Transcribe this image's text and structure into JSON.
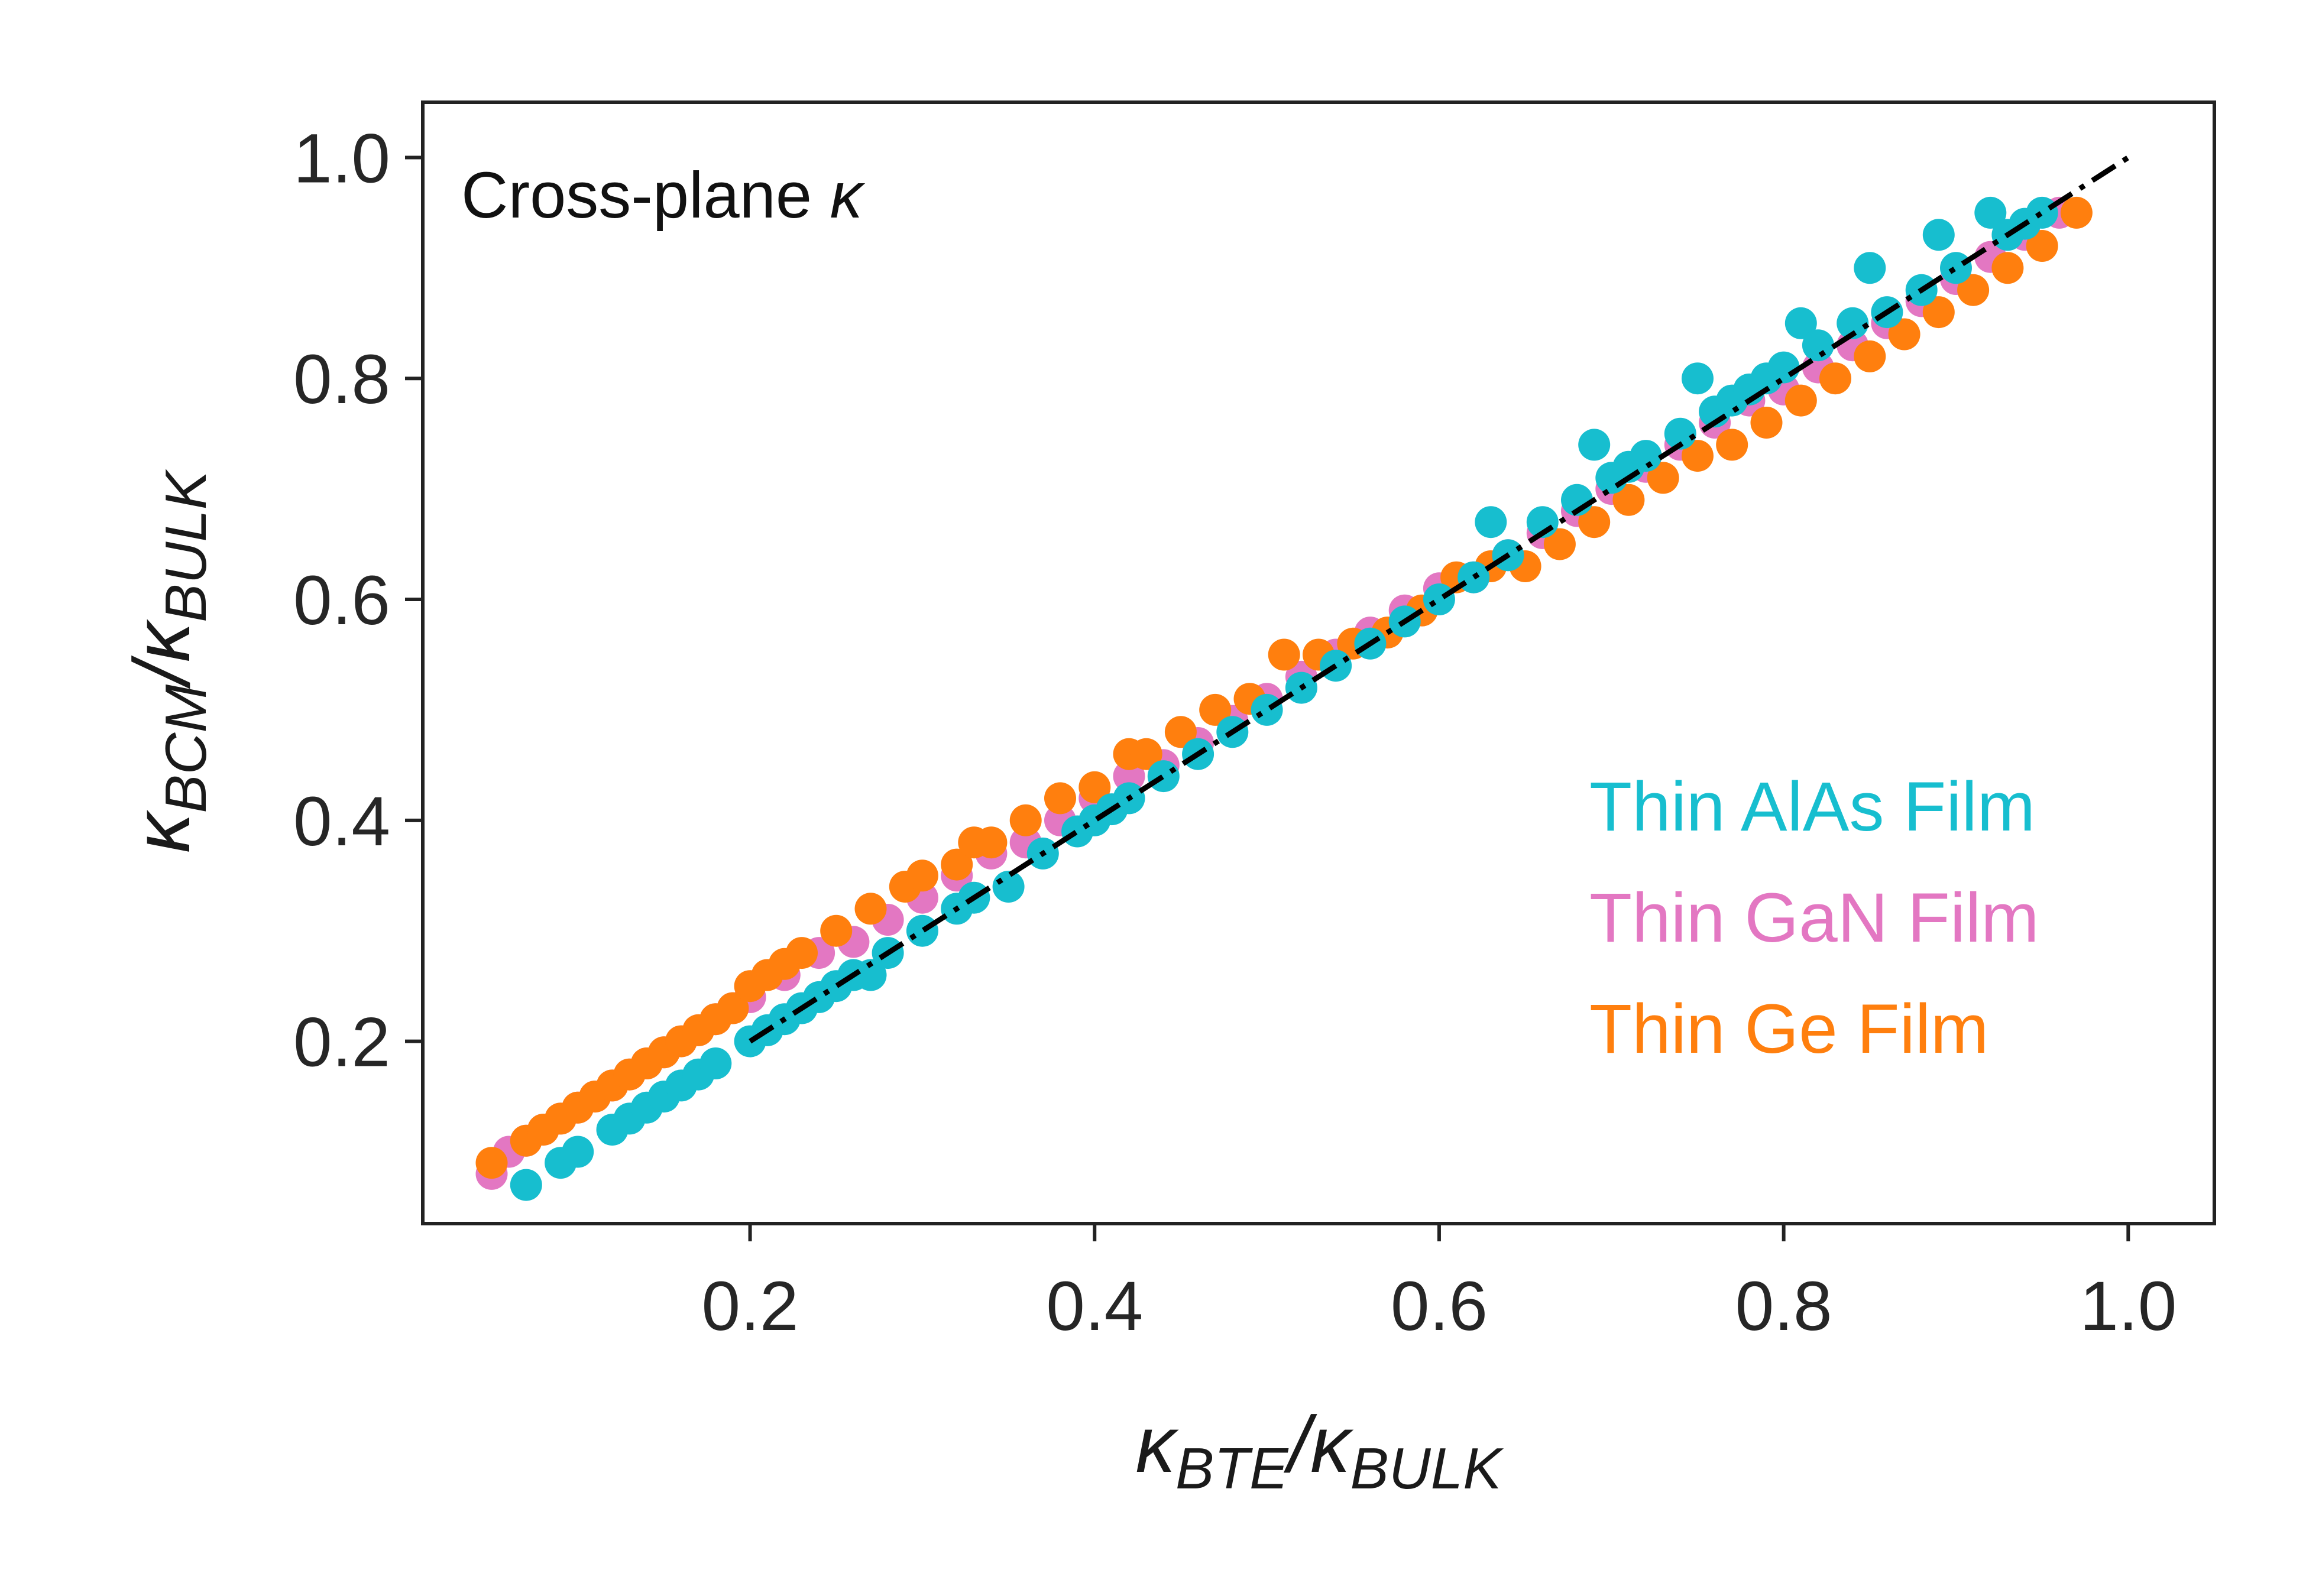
{
  "chart_data": {
    "type": "scatter",
    "annotation": {
      "prefix": "Cross-plane ",
      "symbol": "κ"
    },
    "xlabel": {
      "main": "κ",
      "sub": "BTE",
      "sep": "/κ",
      "sub2": "BULK"
    },
    "ylabel": {
      "main": "κ",
      "sub": "BCM",
      "sep": "/κ",
      "sub2": "BULK"
    },
    "xlim": [
      0.01,
      1.05
    ],
    "ylim": [
      0.035,
      1.05
    ],
    "xticks": [
      0.2,
      0.4,
      0.6,
      0.8,
      1.0
    ],
    "xtick_labels": [
      "0.2",
      "0.4",
      "0.6",
      "0.8",
      "1.0"
    ],
    "yticks": [
      0.2,
      0.4,
      0.6,
      0.8,
      1.0
    ],
    "ytick_labels": [
      "0.2",
      "0.4",
      "0.6",
      "0.8",
      "1.0"
    ],
    "grid": false,
    "legend_position": "lower-right",
    "reference_line": {
      "style": "dash-dot",
      "color": "#000000",
      "x": [
        0.2,
        1.0
      ],
      "y": [
        0.2,
        1.0
      ]
    },
    "series": [
      {
        "name": "Thin GaN Film",
        "color": "#e377c2",
        "x": [
          0.05,
          0.06,
          0.07,
          0.08,
          0.09,
          0.1,
          0.11,
          0.12,
          0.13,
          0.14,
          0.15,
          0.16,
          0.17,
          0.18,
          0.19,
          0.2,
          0.22,
          0.24,
          0.26,
          0.28,
          0.3,
          0.32,
          0.34,
          0.36,
          0.38,
          0.4,
          0.42,
          0.44,
          0.46,
          0.48,
          0.5,
          0.52,
          0.54,
          0.56,
          0.58,
          0.6,
          0.62,
          0.64,
          0.66,
          0.68,
          0.7,
          0.72,
          0.74,
          0.76,
          0.78,
          0.8,
          0.82,
          0.84,
          0.86,
          0.88,
          0.9,
          0.92,
          0.94,
          0.96
        ],
        "y": [
          0.08,
          0.1,
          0.11,
          0.12,
          0.13,
          0.14,
          0.15,
          0.16,
          0.17,
          0.18,
          0.19,
          0.2,
          0.21,
          0.22,
          0.23,
          0.24,
          0.26,
          0.28,
          0.29,
          0.31,
          0.33,
          0.35,
          0.37,
          0.38,
          0.4,
          0.42,
          0.44,
          0.45,
          0.47,
          0.49,
          0.51,
          0.53,
          0.55,
          0.57,
          0.59,
          0.61,
          0.62,
          0.64,
          0.66,
          0.68,
          0.7,
          0.72,
          0.74,
          0.76,
          0.78,
          0.79,
          0.81,
          0.83,
          0.85,
          0.87,
          0.89,
          0.91,
          0.93,
          0.95
        ]
      },
      {
        "name": "Thin Ge Film",
        "color": "#ff7f0e",
        "x": [
          0.05,
          0.07,
          0.08,
          0.09,
          0.1,
          0.11,
          0.12,
          0.13,
          0.14,
          0.15,
          0.16,
          0.17,
          0.18,
          0.19,
          0.2,
          0.21,
          0.22,
          0.23,
          0.25,
          0.27,
          0.29,
          0.3,
          0.32,
          0.33,
          0.34,
          0.36,
          0.38,
          0.4,
          0.42,
          0.43,
          0.45,
          0.47,
          0.49,
          0.51,
          0.53,
          0.55,
          0.57,
          0.59,
          0.61,
          0.63,
          0.65,
          0.67,
          0.69,
          0.71,
          0.73,
          0.75,
          0.77,
          0.79,
          0.81,
          0.83,
          0.85,
          0.87,
          0.89,
          0.91,
          0.93,
          0.95,
          0.97
        ],
        "y": [
          0.09,
          0.11,
          0.12,
          0.13,
          0.14,
          0.15,
          0.16,
          0.17,
          0.18,
          0.19,
          0.2,
          0.21,
          0.22,
          0.23,
          0.25,
          0.26,
          0.27,
          0.28,
          0.3,
          0.32,
          0.34,
          0.35,
          0.36,
          0.38,
          0.38,
          0.4,
          0.42,
          0.43,
          0.46,
          0.46,
          0.48,
          0.5,
          0.51,
          0.55,
          0.55,
          0.56,
          0.57,
          0.59,
          0.62,
          0.63,
          0.63,
          0.65,
          0.67,
          0.69,
          0.71,
          0.73,
          0.74,
          0.76,
          0.78,
          0.8,
          0.82,
          0.84,
          0.86,
          0.88,
          0.9,
          0.92,
          0.95
        ]
      },
      {
        "name": "Thin AlAs Film",
        "color": "#17becf",
        "x": [
          0.07,
          0.09,
          0.1,
          0.12,
          0.13,
          0.14,
          0.15,
          0.16,
          0.17,
          0.18,
          0.2,
          0.21,
          0.22,
          0.23,
          0.24,
          0.25,
          0.26,
          0.27,
          0.28,
          0.3,
          0.32,
          0.33,
          0.35,
          0.37,
          0.39,
          0.4,
          0.41,
          0.42,
          0.44,
          0.46,
          0.48,
          0.5,
          0.52,
          0.54,
          0.56,
          0.58,
          0.6,
          0.62,
          0.63,
          0.64,
          0.66,
          0.68,
          0.69,
          0.7,
          0.71,
          0.72,
          0.74,
          0.75,
          0.76,
          0.77,
          0.78,
          0.79,
          0.8,
          0.81,
          0.82,
          0.84,
          0.85,
          0.86,
          0.88,
          0.89,
          0.9,
          0.92,
          0.93,
          0.94,
          0.95
        ],
        "y": [
          0.07,
          0.09,
          0.1,
          0.12,
          0.13,
          0.14,
          0.15,
          0.16,
          0.17,
          0.18,
          0.2,
          0.21,
          0.22,
          0.23,
          0.24,
          0.25,
          0.26,
          0.26,
          0.28,
          0.3,
          0.32,
          0.33,
          0.34,
          0.37,
          0.39,
          0.4,
          0.41,
          0.42,
          0.44,
          0.46,
          0.48,
          0.5,
          0.52,
          0.54,
          0.56,
          0.58,
          0.6,
          0.62,
          0.67,
          0.64,
          0.67,
          0.69,
          0.74,
          0.71,
          0.72,
          0.73,
          0.75,
          0.8,
          0.77,
          0.78,
          0.79,
          0.8,
          0.81,
          0.85,
          0.83,
          0.85,
          0.9,
          0.86,
          0.88,
          0.93,
          0.9,
          0.95,
          0.93,
          0.94,
          0.95
        ]
      }
    ]
  }
}
